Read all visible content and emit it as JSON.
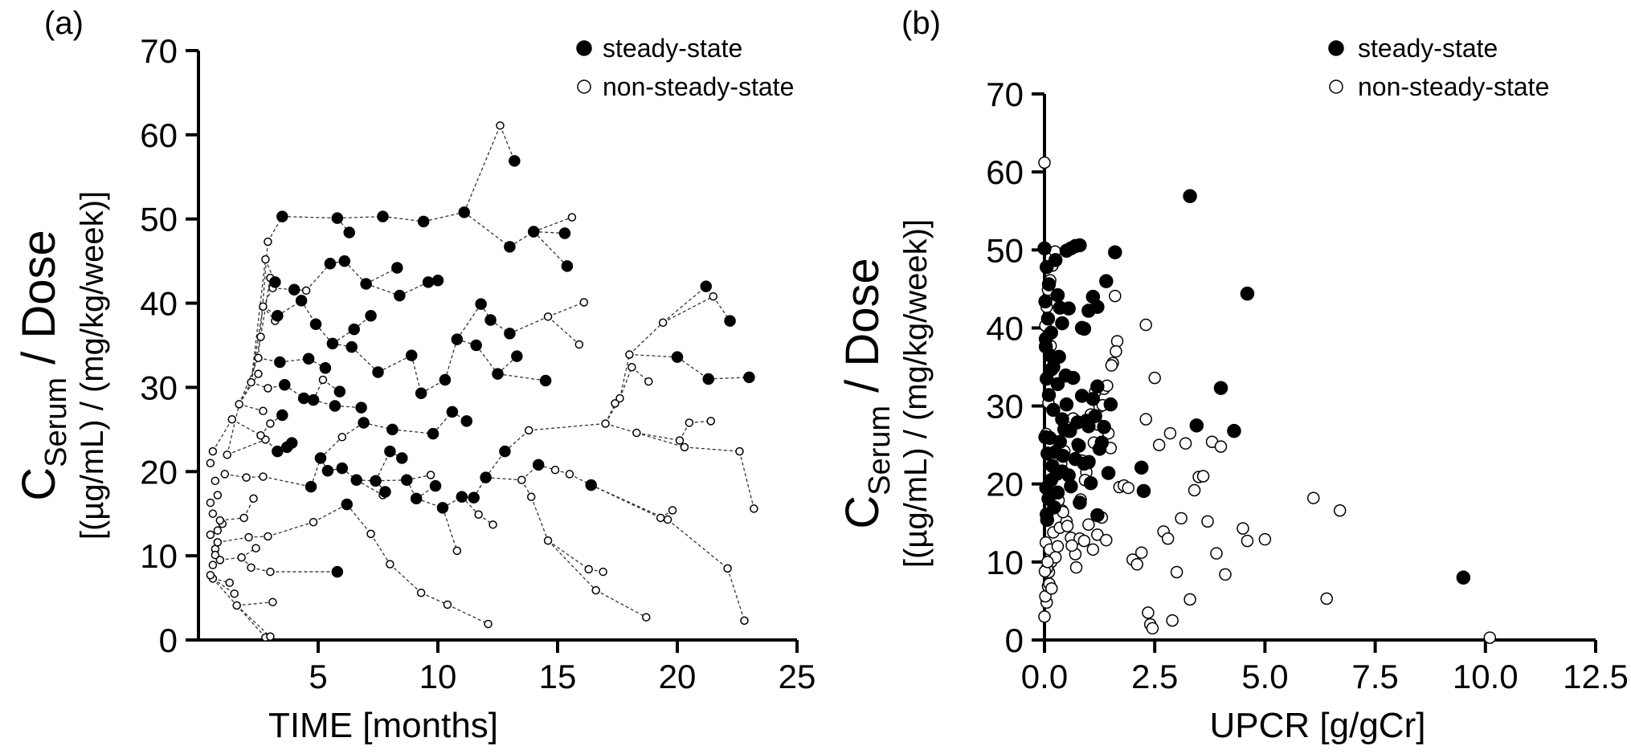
{
  "chart_data": [
    {
      "panel": "(a)",
      "type": "scatter",
      "xlabel": "TIME [months]",
      "ylabel_main": "C",
      "ylabel_sub": "Serum",
      "ylabel_tail": " / Dose",
      "ylabel_units": "[(µg/mL) / (mg/kg/week)]",
      "xlim": [
        0,
        25
      ],
      "ylim": [
        0,
        70
      ],
      "xticks": [
        5,
        10,
        15,
        20,
        25
      ],
      "yticks": [
        0,
        10,
        20,
        30,
        40,
        50,
        60,
        70
      ],
      "legend": [
        "steady-state",
        "non-steady-state"
      ],
      "legend_position": "top-right",
      "series": [
        {
          "name": "steady-state",
          "marker": "filled",
          "x": [
            3.5,
            5.8,
            6.3,
            7.7,
            9.4,
            11.1,
            13.2,
            15.3,
            21.2,
            22.2,
            23.0,
            3.2,
            4.0,
            5.5,
            6.1,
            7.0,
            8.3,
            10.0,
            11.8,
            13.0,
            14.0,
            15.4,
            20.0,
            21.3,
            3.3,
            4.3,
            4.9,
            5.6,
            6.5,
            7.2,
            8.4,
            9.6,
            10.8,
            12.2,
            13.3,
            14.5,
            3.4,
            4.6,
            5.3,
            6.4,
            7.5,
            8.9,
            10.3,
            11.6,
            13.0,
            3.6,
            4.8,
            5.9,
            6.8,
            8.1,
            9.3,
            10.6,
            12.5,
            3.5,
            4.4,
            5.7,
            6.9,
            8.0,
            9.8,
            11.2,
            12.8,
            14.2,
            3.7,
            5.1,
            6.0,
            7.4,
            8.7,
            10.2,
            12.0,
            3.3,
            4.7,
            6.2,
            7.8,
            9.1,
            11.0,
            5.8,
            16.4,
            3.9,
            5.4,
            6.6,
            8.5,
            9.9,
            11.5
          ],
          "y": [
            50.3,
            50.1,
            48.4,
            50.3,
            49.7,
            50.8,
            56.9,
            48.3,
            42.0,
            37.9,
            31.2,
            42.5,
            41.6,
            44.7,
            45.0,
            42.3,
            44.2,
            42.7,
            39.9,
            46.7,
            48.5,
            44.4,
            33.6,
            31.0,
            38.5,
            40.3,
            37.5,
            35.2,
            36.9,
            38.5,
            40.9,
            42.5,
            35.7,
            38.0,
            33.7,
            30.8,
            33.0,
            33.4,
            32.3,
            34.8,
            31.8,
            33.8,
            30.9,
            35.0,
            36.4,
            30.3,
            28.5,
            29.5,
            27.6,
            25.0,
            29.3,
            27.1,
            31.6,
            26.7,
            28.7,
            27.8,
            25.8,
            22.4,
            24.5,
            26.0,
            22.4,
            20.8,
            22.9,
            21.6,
            20.4,
            18.9,
            19.0,
            15.7,
            19.3,
            22.4,
            18.2,
            16.1,
            17.6,
            16.8,
            17.0,
            8.1,
            18.4,
            23.4,
            20.1,
            19.0,
            21.6,
            18.3,
            16.9
          ]
        },
        {
          "name": "non-steady-state",
          "marker": "open",
          "x": [
            0.5,
            0.6,
            0.7,
            0.8,
            0.9,
            1.0,
            0.5,
            0.6,
            0.7,
            0.8,
            0.5,
            0.6,
            0.9,
            1.1,
            0.7,
            0.8,
            0.6,
            0.5,
            2.8,
            2.9,
            3.0,
            2.7,
            3.1,
            2.6,
            2.5,
            3.2,
            2.9,
            3.0,
            2.7,
            2.8,
            12.6,
            15.6,
            16.1,
            18.0,
            19.4,
            21.5,
            22.6,
            23.2,
            14.6,
            17.6,
            18.8,
            20.1,
            21.4,
            9.3,
            10.4,
            12.1,
            16.3,
            16.6,
            18.7,
            22.1,
            22.8,
            2.8,
            3.0,
            13.5,
            14.9,
            17.0,
            18.3,
            19.6,
            20.5,
            3.1,
            4.8,
            7.2,
            9.7,
            13.9,
            15.5,
            17.4,
            19.3,
            8.0,
            11.7,
            14.6,
            16.9,
            19.8,
            2.5,
            2.6,
            2.7,
            2.9,
            3.0,
            6.0,
            7.7,
            10.8,
            12.3,
            13.8,
            15.9,
            18.1,
            20.3,
            1.2,
            1.4,
            1.7,
            2.0,
            2.2,
            1.5,
            1.8,
            2.1,
            1.3,
            1.6,
            1.9,
            2.3,
            2.4,
            2.2,
            4.5,
            5.2
          ],
          "y": [
            12.5,
            15.0,
            10.8,
            17.2,
            9.5,
            13.8,
            21.0,
            7.3,
            18.9,
            11.6,
            16.3,
            8.9,
            14.2,
            19.7,
            10.1,
            13.0,
            22.4,
            7.7,
            45.2,
            47.3,
            43.0,
            39.6,
            41.8,
            36.0,
            33.5,
            37.9,
            29.9,
            25.7,
            27.2,
            23.8,
            61.1,
            50.2,
            40.1,
            33.9,
            37.7,
            40.8,
            22.4,
            15.6,
            38.4,
            28.7,
            30.7,
            23.7,
            26.0,
            5.6,
            4.2,
            1.9,
            8.4,
            5.9,
            2.7,
            8.5,
            2.3,
            0.3,
            0.4,
            19.0,
            20.2,
            25.7,
            24.6,
            14.3,
            25.8,
            4.5,
            14.0,
            12.6,
            19.6,
            17.0,
            19.7,
            28.1,
            14.5,
            9.0,
            14.9,
            11.8,
            8.1,
            15.4,
            31.6,
            24.3,
            19.4,
            12.3,
            8.1,
            24.1,
            17.2,
            10.6,
            13.7,
            24.9,
            35.1,
            32.4,
            22.9,
            22.0,
            26.2,
            28.0,
            19.3,
            30.6,
            5.5,
            9.8,
            12.2,
            6.8,
            4.1,
            14.5,
            16.8,
            10.9,
            8.6,
            41.5,
            30.9
          ]
        }
      ]
    },
    {
      "panel": "(b)",
      "type": "scatter",
      "xlabel": "UPCR [g/gCr]",
      "ylabel_main": "C",
      "ylabel_sub": "Serum",
      "ylabel_tail": " / Dose",
      "ylabel_units": "[(µg/mL) / (mg/kg/week)]",
      "xlim": [
        0,
        12.5
      ],
      "ylim": [
        0,
        70
      ],
      "xticks": [
        0.0,
        2.5,
        5.0,
        7.5,
        10.0,
        12.5
      ],
      "xtick_labels": [
        "0.0",
        "2.5",
        "5.0",
        "7.5",
        "10.0",
        "12.5"
      ],
      "yticks": [
        0,
        10,
        20,
        30,
        40,
        50,
        60,
        70
      ],
      "legend": [
        "steady-state",
        "non-steady-state"
      ],
      "legend_position": "top-right",
      "series": [
        {
          "name": "steady-state",
          "marker": "filled",
          "x": [
            0.0,
            0.05,
            0.1,
            0.02,
            0.08,
            0.15,
            0.03,
            0.12,
            0.2,
            0.25,
            0.3,
            0.35,
            0.4,
            0.5,
            0.55,
            0.6,
            0.7,
            0.8,
            0.9,
            1.0,
            1.1,
            1.2,
            1.4,
            1.6,
            0.05,
            0.1,
            0.2,
            0.3,
            0.4,
            0.5,
            0.65,
            0.75,
            0.85,
            1.0,
            1.15,
            1.3,
            1.5,
            0.02,
            0.07,
            0.12,
            0.18,
            0.25,
            0.35,
            0.45,
            0.55,
            0.7,
            0.9,
            1.05,
            1.25,
            1.45,
            0.04,
            0.09,
            0.15,
            0.22,
            0.3,
            0.4,
            0.6,
            0.8,
            1.0,
            1.2,
            0.06,
            0.14,
            0.28,
            0.42,
            0.58,
            0.78,
            0.95,
            1.1,
            1.35,
            2.2,
            2.25,
            3.3,
            3.45,
            4.0,
            4.3,
            4.6,
            9.5,
            0.03,
            0.16,
            0.33,
            0.48,
            0.85,
            1.2,
            0.05
          ],
          "y": [
            50.2,
            47.8,
            45.6,
            43.4,
            41.2,
            39.4,
            37.6,
            36.5,
            35.0,
            48.7,
            44.2,
            42.6,
            40.6,
            49.9,
            42.5,
            50.2,
            50.5,
            50.6,
            39.9,
            42.2,
            44.0,
            32.5,
            46.0,
            49.7,
            33.5,
            31.4,
            29.5,
            32.8,
            28.3,
            30.2,
            33.6,
            27.9,
            31.3,
            27.4,
            28.7,
            25.3,
            30.2,
            26.0,
            23.9,
            25.9,
            22.3,
            24.1,
            25.4,
            27.0,
            21.1,
            23.2,
            22.6,
            20.1,
            24.5,
            21.4,
            19.5,
            18.1,
            20.5,
            17.0,
            18.9,
            21.6,
            19.7,
            17.6,
            22.8,
            16.0,
            15.4,
            18.7,
            21.3,
            23.6,
            26.8,
            24.9,
            28.1,
            30.9,
            27.3,
            22.1,
            19.1,
            56.9,
            27.5,
            32.3,
            26.8,
            44.4,
            8.0,
            38.6,
            34.7,
            36.3,
            33.9,
            40.0,
            42.7,
            16.1
          ]
        },
        {
          "name": "non-steady-state",
          "marker": "open",
          "x": [
            0.0,
            0.0,
            0.05,
            0.02,
            0.08,
            0.1,
            0.15,
            0.03,
            0.06,
            0.12,
            0.2,
            0.25,
            0.3,
            0.35,
            0.4,
            0.5,
            0.6,
            0.7,
            0.8,
            0.9,
            1.0,
            1.1,
            1.2,
            1.3,
            1.4,
            1.5,
            1.6,
            1.7,
            1.8,
            2.0,
            2.1,
            2.2,
            2.3,
            2.35,
            2.4,
            2.45,
            2.5,
            2.7,
            2.8,
            2.9,
            3.0,
            3.1,
            3.3,
            3.5,
            3.7,
            3.9,
            4.1,
            4.5,
            4.6,
            5.0,
            6.1,
            6.4,
            6.7,
            10.1,
            0.04,
            0.09,
            0.14,
            0.19,
            0.27,
            0.38,
            0.45,
            0.55,
            0.65,
            0.75,
            0.85,
            0.95,
            1.05,
            1.15,
            1.25,
            1.35,
            1.45,
            1.55,
            1.65,
            1.9,
            2.3,
            2.6,
            2.85,
            3.2,
            3.4,
            3.6,
            3.8,
            4.0,
            0.01,
            0.07,
            0.11,
            0.16,
            0.22,
            0.32,
            0.42,
            0.52,
            0.62,
            0.72,
            0.82,
            0.92,
            1.02,
            1.12,
            1.22,
            1.32,
            1.42,
            1.52,
            1.62,
            0.02,
            0.05,
            0.08,
            0.13,
            0.18,
            0.24
          ],
          "y": [
            61.2,
            3.0,
            4.8,
            5.6,
            6.9,
            8.7,
            10.0,
            12.5,
            9.2,
            11.6,
            13.8,
            10.6,
            12.0,
            14.4,
            16.6,
            15.2,
            13.1,
            11.0,
            13.0,
            12.7,
            14.8,
            11.6,
            13.5,
            15.7,
            12.8,
            24.6,
            44.1,
            19.6,
            19.8,
            10.3,
            9.7,
            11.2,
            40.4,
            3.5,
            2.0,
            1.5,
            33.6,
            13.9,
            13.0,
            2.5,
            8.7,
            15.6,
            5.2,
            20.9,
            15.2,
            11.1,
            8.4,
            14.3,
            12.7,
            12.9,
            18.2,
            5.3,
            16.6,
            0.3,
            26.4,
            30.4,
            37.7,
            34.9,
            18.4,
            22.6,
            24.2,
            26.7,
            28.4,
            25.1,
            23.0,
            21.5,
            28.9,
            31.8,
            29.9,
            32.2,
            26.5,
            35.5,
            38.3,
            19.5,
            28.3,
            25.0,
            26.5,
            25.2,
            19.2,
            21.0,
            25.4,
            24.8,
            8.8,
            10.0,
            7.2,
            6.6,
            17.5,
            17.9,
            16.4,
            14.6,
            12.1,
            9.3,
            18.0,
            20.5,
            22.9,
            25.3,
            27.6,
            30.1,
            32.6,
            35.2,
            37.0,
            40.3,
            42.7,
            44.9,
            46.1,
            48.0,
            49.8
          ]
        }
      ]
    }
  ]
}
